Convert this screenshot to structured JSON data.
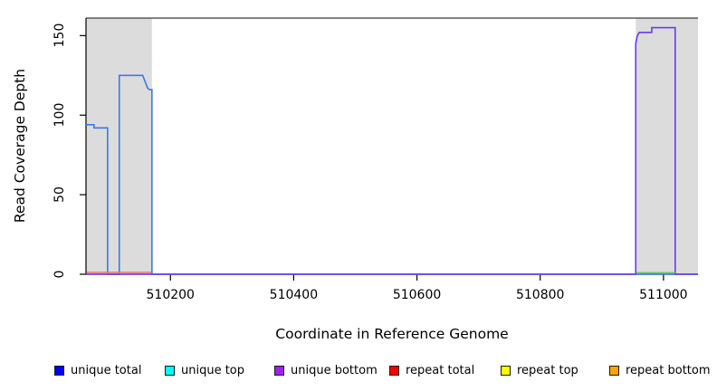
{
  "chart_data": {
    "type": "line",
    "title": "",
    "xlabel": "Coordinate in Reference Genome",
    "ylabel": "Read Coverage Depth",
    "xlim": [
      510063,
      511056
    ],
    "ylim": [
      0,
      161
    ],
    "x_ticks": [
      510200,
      510400,
      510600,
      510800,
      511000
    ],
    "y_ticks": [
      0,
      50,
      100,
      150
    ],
    "grid": false,
    "legend_position": "bottom",
    "axis_color": "#000000",
    "top_boundary_line": {
      "value": 161,
      "color": "#5a5a5a"
    },
    "shaded_regions": [
      {
        "name": "repeat-region-left",
        "x0": 510063,
        "x1": 510170,
        "color": "#dcdcdc"
      },
      {
        "name": "repeat-region-right",
        "x0": 510955,
        "x1": 511056,
        "color": "#dcdcdc"
      }
    ],
    "series": [
      {
        "name": "unique total",
        "color": "#3c78e6",
        "points": [
          [
            510063,
            94
          ],
          [
            510076,
            94
          ],
          [
            510076,
            92
          ],
          [
            510098,
            92
          ],
          [
            510098,
            0
          ],
          [
            510117,
            0
          ],
          [
            510117,
            125
          ],
          [
            510155,
            125
          ],
          [
            510157,
            123
          ],
          [
            510159,
            121
          ],
          [
            510161,
            119
          ],
          [
            510163,
            117
          ],
          [
            510166,
            116
          ],
          [
            510170,
            116
          ],
          [
            510170,
            0
          ],
          [
            511056,
            0
          ]
        ]
      },
      {
        "name": "unique bottom",
        "color": "#6b3af2",
        "points": [
          [
            510063,
            0
          ],
          [
            510955,
            0
          ],
          [
            510955,
            145
          ],
          [
            510957,
            149
          ],
          [
            510959,
            151
          ],
          [
            510961,
            152
          ],
          [
            510981,
            152
          ],
          [
            510981,
            155
          ],
          [
            511019,
            155
          ],
          [
            511019,
            0
          ],
          [
            511056,
            0
          ]
        ]
      },
      {
        "name": "repeat total",
        "color": "#ef7a80",
        "points": [
          [
            510064,
            1.2
          ],
          [
            510169,
            1.2
          ]
        ]
      },
      {
        "name": "repeat baseline green",
        "color": "#70c870",
        "points": [
          [
            510956,
            1
          ],
          [
            511019,
            1
          ]
        ]
      }
    ],
    "legend": [
      {
        "label": "unique total",
        "color": "#0000ff"
      },
      {
        "label": "unique top",
        "color": "#00ffff"
      },
      {
        "label": "unique bottom",
        "color": "#a020f0"
      },
      {
        "label": "repeat total",
        "color": "#ff0000"
      },
      {
        "label": "repeat top",
        "color": "#ffff00"
      },
      {
        "label": "repeat bottom",
        "color": "#ffa500"
      }
    ]
  }
}
